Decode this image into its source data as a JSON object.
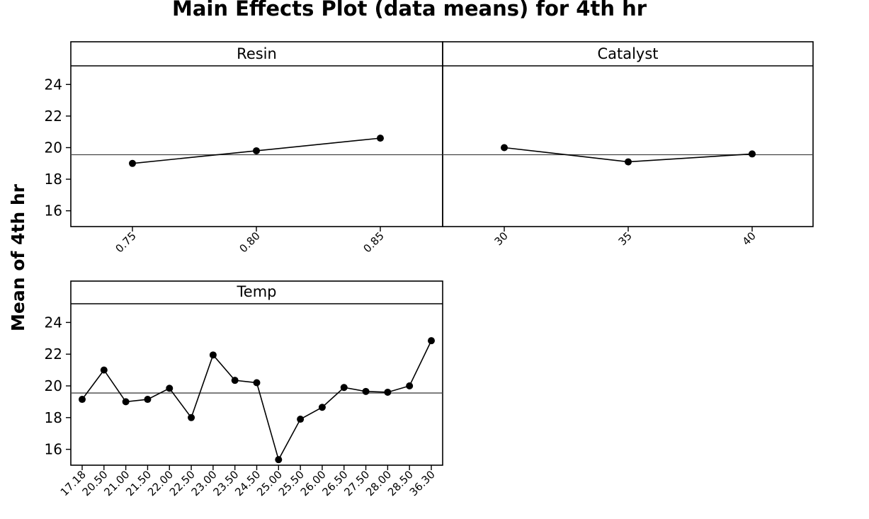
{
  "chart_data": {
    "type": "line",
    "title": "Main Effects Plot (data means) for 4th hr",
    "ylabel": "Mean of 4th hr",
    "ylim": [
      15,
      25
    ],
    "yticks": [
      16,
      18,
      20,
      22,
      24
    ],
    "reference_line": 19.55,
    "panels": [
      {
        "name": "Resin",
        "categories": [
          "0.75",
          "0.80",
          "0.85"
        ],
        "values": [
          19.0,
          19.8,
          20.6
        ]
      },
      {
        "name": "Catalyst",
        "categories": [
          "30",
          "35",
          "40"
        ],
        "values": [
          20.0,
          19.1,
          19.6
        ]
      },
      {
        "name": "Temp",
        "categories": [
          "17.18",
          "20.50",
          "21.00",
          "21.50",
          "22.00",
          "22.50",
          "23.00",
          "23.50",
          "24.50",
          "25.00",
          "25.50",
          "26.00",
          "26.50",
          "27.50",
          "28.00",
          "28.50",
          "36.30"
        ],
        "values": [
          19.15,
          21.0,
          19.0,
          19.15,
          19.85,
          18.0,
          21.95,
          20.35,
          20.2,
          15.35,
          17.9,
          18.65,
          19.9,
          19.65,
          19.6,
          20.0,
          22.85
        ]
      }
    ]
  }
}
